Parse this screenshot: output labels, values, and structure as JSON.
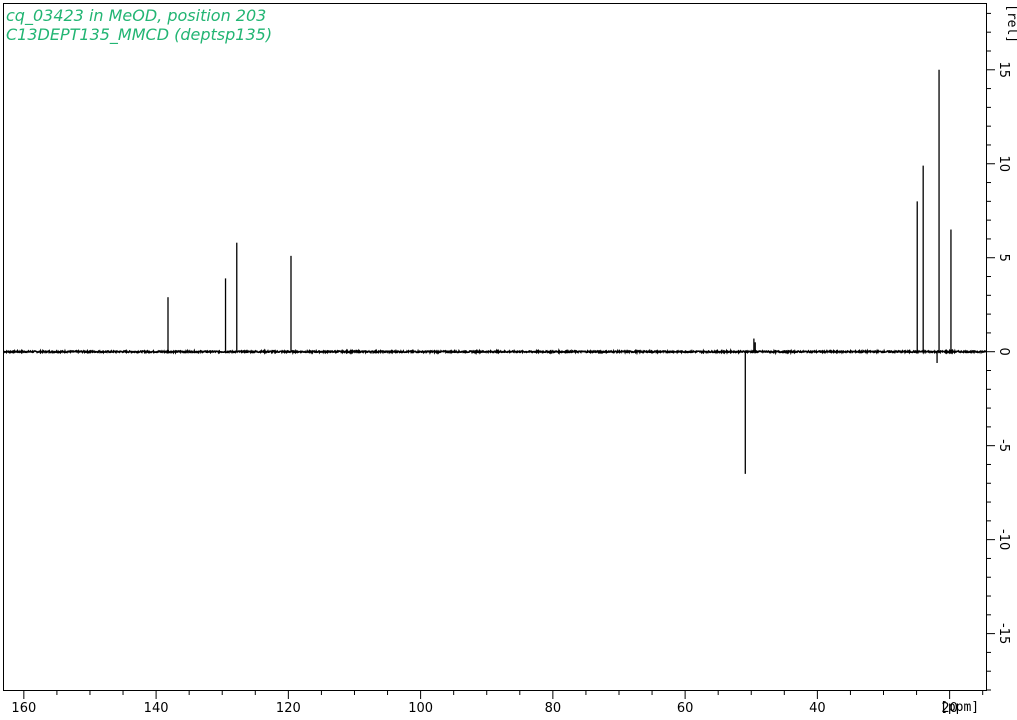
{
  "header": {
    "line1": "cq_03423 in MeOD, position 203",
    "line2": "C13DEPT135_MMCD (deptsp135)"
  },
  "colors": {
    "title": "#22b573",
    "trace": "#000000",
    "frame": "#000000",
    "background": "#ffffff"
  },
  "chart_data": {
    "type": "line",
    "title": "",
    "xlabel": "[ppm]",
    "ylabel": "[rel]",
    "x_reversed": true,
    "xlim": [
      163,
      14.5
    ],
    "ylim": [
      -18.0,
      18.5
    ],
    "x_ticks_labeled": [
      160,
      140,
      120,
      100,
      80,
      60,
      40,
      20
    ],
    "x_tick_labels": [
      "160",
      "140",
      "120",
      "100",
      "80",
      "60",
      "40",
      "20"
    ],
    "x_minor_step": 5,
    "y_ticks_labeled": [
      15,
      10,
      5,
      0,
      -5,
      -10,
      -15
    ],
    "y_tick_labels": [
      "15",
      "10",
      "5",
      "0",
      "-5",
      "-10",
      "-15"
    ],
    "y_minor_step": 1,
    "grid": false,
    "legend": "none",
    "peaks": [
      {
        "ppm": 138.2,
        "intensity": 2.9
      },
      {
        "ppm": 129.5,
        "intensity": 3.9
      },
      {
        "ppm": 127.8,
        "intensity": 5.8
      },
      {
        "ppm": 119.6,
        "intensity": 5.1
      },
      {
        "ppm": 50.9,
        "intensity": -6.5
      },
      {
        "ppm": 49.6,
        "intensity": 0.7
      },
      {
        "ppm": 49.4,
        "intensity": 0.5
      },
      {
        "ppm": 24.9,
        "intensity": 8.0
      },
      {
        "ppm": 24.0,
        "intensity": 9.9
      },
      {
        "ppm": 21.9,
        "intensity": -0.6
      },
      {
        "ppm": 21.6,
        "intensity": 15.0
      },
      {
        "ppm": 19.8,
        "intensity": 6.5
      }
    ]
  }
}
